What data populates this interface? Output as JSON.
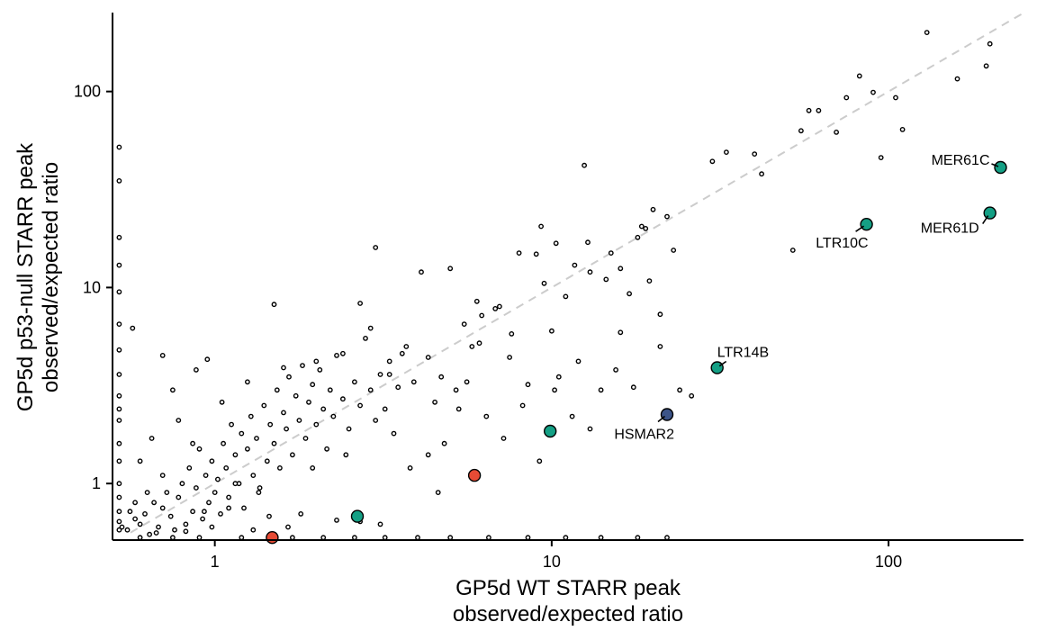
{
  "chart_data": {
    "type": "scatter",
    "title": "",
    "xlabel_lines": [
      "GP5d WT STARR peak",
      "observed/expected ratio"
    ],
    "ylabel_lines": [
      "GP5d p53-null STARR peak",
      "observed/expected ratio"
    ],
    "x_scale": "log10",
    "y_scale": "log10",
    "xlim": [
      0.5,
      250
    ],
    "ylim": [
      0.52,
      250
    ],
    "x_ticks": [
      1,
      10,
      100
    ],
    "x_tick_labels": [
      "1",
      "10",
      "100"
    ],
    "y_ticks": [
      1,
      10,
      100
    ],
    "y_tick_labels": [
      "1",
      "10",
      "100"
    ],
    "grid": false,
    "identity_line": {
      "style": "dashed",
      "color": "#cccccc"
    },
    "colors": {
      "background_points": "#000000",
      "green": "#14a085",
      "red": "#e64b35",
      "blue": "#3c5488"
    },
    "background_points": [
      [
        0.53,
        0.6
      ],
      [
        0.55,
        0.58
      ],
      [
        0.56,
        0.72
      ],
      [
        0.58,
        0.66
      ],
      [
        0.6,
        0.62
      ],
      [
        0.62,
        0.7
      ],
      [
        0.64,
        0.55
      ],
      [
        0.66,
        0.8
      ],
      [
        0.68,
        0.6
      ],
      [
        0.7,
        0.75
      ],
      [
        0.72,
        0.9
      ],
      [
        0.74,
        0.68
      ],
      [
        0.76,
        0.58
      ],
      [
        0.78,
        0.85
      ],
      [
        0.8,
        1.0
      ],
      [
        0.82,
        0.62
      ],
      [
        0.84,
        1.2
      ],
      [
        0.86,
        0.72
      ],
      [
        0.88,
        0.95
      ],
      [
        0.9,
        1.5
      ],
      [
        0.92,
        0.66
      ],
      [
        0.94,
        1.1
      ],
      [
        0.96,
        0.8
      ],
      [
        0.98,
        1.3
      ],
      [
        1.0,
        0.9
      ],
      [
        1.02,
        1.05
      ],
      [
        1.04,
        0.7
      ],
      [
        1.06,
        1.6
      ],
      [
        1.08,
        1.2
      ],
      [
        1.1,
        0.85
      ],
      [
        1.12,
        2.0
      ],
      [
        1.15,
        1.4
      ],
      [
        1.18,
        1.0
      ],
      [
        1.2,
        1.8
      ],
      [
        1.22,
        0.75
      ],
      [
        1.25,
        1.5
      ],
      [
        1.28,
        2.2
      ],
      [
        1.3,
        1.1
      ],
      [
        1.33,
        1.7
      ],
      [
        1.36,
        0.95
      ],
      [
        1.4,
        2.5
      ],
      [
        1.43,
        1.3
      ],
      [
        1.46,
        2.0
      ],
      [
        1.5,
        1.6
      ],
      [
        1.53,
        3.0
      ],
      [
        1.56,
        1.2
      ],
      [
        1.6,
        2.3
      ],
      [
        1.63,
        1.9
      ],
      [
        1.66,
        3.5
      ],
      [
        1.7,
        1.4
      ],
      [
        1.74,
        2.8
      ],
      [
        1.78,
        2.1
      ],
      [
        1.82,
        4.0
      ],
      [
        1.86,
        1.7
      ],
      [
        1.9,
        2.6
      ],
      [
        1.95,
        3.2
      ],
      [
        2.0,
        2.0
      ],
      [
        2.05,
        3.8
      ],
      [
        2.1,
        2.4
      ],
      [
        2.15,
        1.5
      ],
      [
        2.2,
        3.0
      ],
      [
        2.25,
        2.2
      ],
      [
        2.3,
        4.5
      ],
      [
        2.4,
        2.7
      ],
      [
        2.5,
        1.9
      ],
      [
        2.6,
        3.3
      ],
      [
        2.7,
        2.5
      ],
      [
        2.8,
        5.5
      ],
      [
        2.9,
        3.0
      ],
      [
        3.0,
        2.1
      ],
      [
        3.1,
        3.6
      ],
      [
        3.2,
        2.4
      ],
      [
        3.3,
        4.2
      ],
      [
        3.4,
        1.8
      ],
      [
        3.5,
        3.1
      ],
      [
        3.7,
        5.0
      ],
      [
        3.9,
        3.3
      ],
      [
        4.1,
        12.0
      ],
      [
        4.3,
        4.4
      ],
      [
        4.5,
        2.6
      ],
      [
        4.7,
        3.5
      ],
      [
        5.0,
        12.5
      ],
      [
        5.2,
        3.0
      ],
      [
        5.5,
        6.5
      ],
      [
        5.8,
        5.0
      ],
      [
        6.0,
        8.5
      ],
      [
        6.4,
        2.2
      ],
      [
        6.8,
        7.8
      ],
      [
        7.2,
        1.7
      ],
      [
        7.6,
        5.8
      ],
      [
        8.0,
        15.0
      ],
      [
        8.5,
        3.2
      ],
      [
        9.0,
        14.8
      ],
      [
        9.5,
        10.5
      ],
      [
        10.0,
        6.0
      ],
      [
        10.5,
        3.5
      ],
      [
        11.0,
        9.0
      ],
      [
        11.5,
        2.2
      ],
      [
        12.0,
        4.2
      ],
      [
        12.5,
        42.0
      ],
      [
        13.0,
        12.0
      ],
      [
        14.0,
        3.0
      ],
      [
        15.0,
        15.0
      ],
      [
        16.0,
        5.9
      ],
      [
        17.0,
        9.3
      ],
      [
        18.0,
        18.0
      ],
      [
        19.0,
        20.0
      ],
      [
        20.0,
        25.0
      ],
      [
        21.0,
        5.0
      ],
      [
        22.0,
        23.0
      ],
      [
        24.0,
        3.0
      ],
      [
        26.0,
        2.8
      ],
      [
        30.0,
        44.0
      ],
      [
        33.0,
        49.0
      ],
      [
        40.0,
        48.0
      ],
      [
        42.0,
        38.0
      ],
      [
        52.0,
        15.5
      ],
      [
        55.0,
        63.0
      ],
      [
        58.0,
        80.0
      ],
      [
        62.0,
        80.0
      ],
      [
        70.0,
        62.0
      ],
      [
        75.0,
        93.0
      ],
      [
        82.0,
        120.0
      ],
      [
        90.0,
        99.0
      ],
      [
        95.0,
        46.0
      ],
      [
        105.0,
        93.0
      ],
      [
        110.0,
        64.0
      ],
      [
        130.0,
        200.0
      ],
      [
        160.0,
        116.0
      ],
      [
        195.0,
        135.0
      ],
      [
        200.0,
        175.0
      ],
      [
        3.0,
        16.0
      ],
      [
        2.7,
        8.3
      ],
      [
        1.5,
        8.2
      ],
      [
        0.95,
        4.3
      ],
      [
        0.7,
        4.5
      ],
      [
        0.88,
        3.8
      ],
      [
        0.75,
        3.0
      ],
      [
        0.57,
        6.2
      ],
      [
        0.52,
        2.4
      ],
      [
        0.52,
        52.0
      ],
      [
        0.52,
        35.0
      ],
      [
        0.52,
        18.0
      ],
      [
        0.52,
        13.0
      ],
      [
        0.52,
        9.5
      ],
      [
        0.52,
        6.5
      ],
      [
        0.52,
        4.8
      ],
      [
        0.52,
        3.6
      ],
      [
        0.52,
        2.8
      ],
      [
        0.52,
        2.1
      ],
      [
        0.52,
        1.6
      ],
      [
        0.52,
        1.3
      ],
      [
        0.52,
        1.0
      ],
      [
        0.52,
        0.85
      ],
      [
        0.52,
        0.72
      ],
      [
        0.52,
        0.64
      ],
      [
        0.52,
        0.58
      ],
      [
        0.6,
        0.53
      ],
      [
        0.75,
        0.53
      ],
      [
        0.9,
        0.53
      ],
      [
        1.2,
        0.53
      ],
      [
        1.7,
        0.53
      ],
      [
        2.1,
        0.53
      ],
      [
        2.6,
        0.53
      ],
      [
        3.2,
        0.53
      ],
      [
        4.0,
        0.53
      ],
      [
        5.0,
        0.53
      ],
      [
        6.5,
        0.53
      ],
      [
        8.5,
        0.53
      ],
      [
        11.0,
        0.53
      ],
      [
        14.0,
        0.53
      ],
      [
        18.0,
        0.53
      ],
      [
        22.0,
        0.53
      ],
      [
        1.65,
        0.6
      ],
      [
        3.1,
        0.62
      ],
      [
        2.3,
        0.65
      ],
      [
        1.3,
        0.58
      ],
      [
        0.82,
        0.57
      ],
      [
        0.67,
        0.56
      ],
      [
        0.98,
        0.6
      ],
      [
        1.8,
        0.7
      ],
      [
        1.1,
        0.75
      ],
      [
        0.93,
        0.72
      ],
      [
        1.45,
        0.68
      ],
      [
        2.7,
        0.64
      ],
      [
        4.6,
        0.9
      ],
      [
        3.8,
        1.2
      ],
      [
        4.8,
        1.6
      ],
      [
        2.45,
        1.4
      ],
      [
        1.95,
        1.2
      ],
      [
        1.35,
        0.9
      ],
      [
        1.15,
        1.0
      ],
      [
        0.7,
        1.1
      ],
      [
        0.63,
        0.9
      ],
      [
        0.58,
        0.8
      ],
      [
        0.6,
        1.3
      ],
      [
        0.65,
        1.7
      ],
      [
        0.78,
        2.1
      ],
      [
        0.86,
        1.6
      ],
      [
        1.05,
        2.6
      ],
      [
        1.25,
        3.3
      ],
      [
        1.6,
        3.9
      ],
      [
        2.0,
        4.2
      ],
      [
        2.4,
        4.6
      ],
      [
        2.9,
        6.2
      ],
      [
        3.6,
        4.6
      ],
      [
        3.3,
        3.6
      ],
      [
        7.5,
        4.4
      ],
      [
        8.2,
        2.5
      ],
      [
        9.2,
        1.3
      ],
      [
        7.0,
        8.0
      ],
      [
        6.2,
        7.2
      ],
      [
        5.6,
        3.3
      ],
      [
        5.3,
        2.4
      ],
      [
        4.3,
        1.4
      ],
      [
        6.1,
        5.2
      ],
      [
        10.2,
        3.0
      ],
      [
        13.0,
        1.9
      ],
      [
        15.5,
        3.8
      ],
      [
        17.5,
        3.1
      ],
      [
        19.5,
        10.8
      ],
      [
        21.0,
        7.3
      ],
      [
        23.0,
        15.5
      ],
      [
        18.5,
        20.5
      ],
      [
        16.0,
        12.5
      ],
      [
        14.5,
        11.0
      ],
      [
        12.8,
        17.0
      ],
      [
        11.7,
        13.0
      ],
      [
        10.3,
        16.8
      ],
      [
        9.3,
        20.5
      ]
    ],
    "highlighted_points": [
      {
        "x": 215,
        "y": 41,
        "color": "green",
        "label": "MER61C"
      },
      {
        "x": 200,
        "y": 24,
        "color": "green",
        "label": "MER61D"
      },
      {
        "x": 86,
        "y": 21,
        "color": "green",
        "label": "LTR10C"
      },
      {
        "x": 31,
        "y": 3.9,
        "color": "green",
        "label": "LTR14B"
      },
      {
        "x": 22,
        "y": 2.25,
        "color": "blue",
        "label": "HSMAR2"
      },
      {
        "x": 9.9,
        "y": 1.85,
        "color": "green",
        "label": ""
      },
      {
        "x": 5.9,
        "y": 1.1,
        "color": "red",
        "label": ""
      },
      {
        "x": 2.65,
        "y": 0.68,
        "color": "green",
        "label": ""
      },
      {
        "x": 1.48,
        "y": 0.53,
        "color": "red",
        "label": ""
      }
    ]
  }
}
